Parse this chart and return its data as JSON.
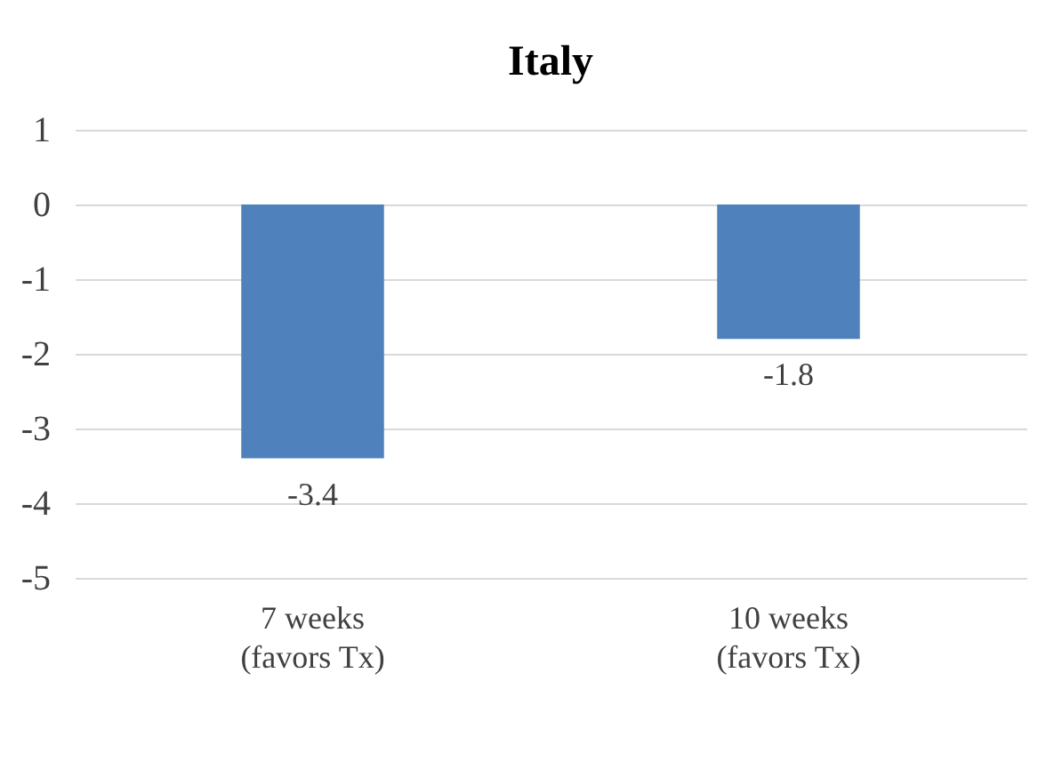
{
  "chart_data": {
    "type": "bar",
    "title": "Italy",
    "categories": [
      "7 weeks\n(favors Tx)",
      "10 weeks\n(favors Tx)"
    ],
    "values": [
      -3.4,
      -1.8
    ],
    "color": "#4f81bd",
    "ylim": [
      -5,
      1
    ],
    "yticks": [
      -5,
      -4,
      -3,
      -2,
      -1,
      0,
      1
    ],
    "grid": "y",
    "data_labels": true
  }
}
